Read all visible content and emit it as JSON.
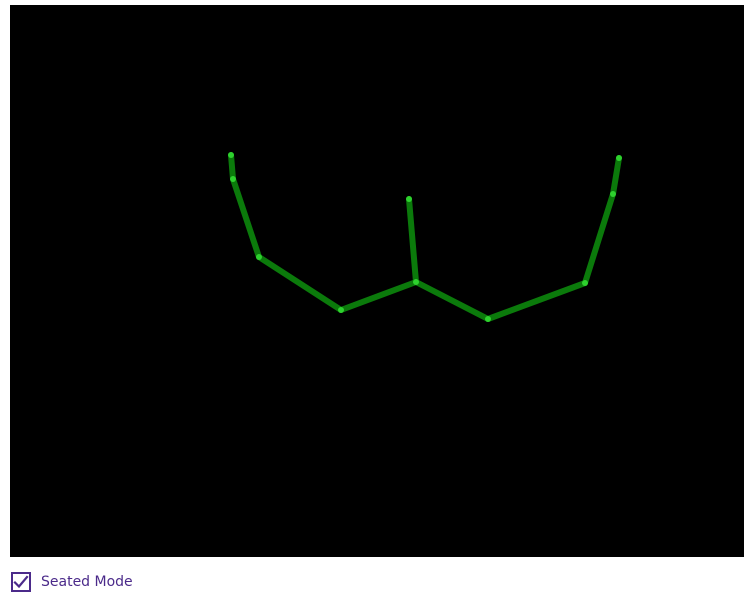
{
  "colors": {
    "canvas_background": "#000000",
    "bone": "#0b7a0b",
    "joint": "#2ed12e",
    "accent": "#4b2a8a"
  },
  "seated_mode": {
    "label": "Seated Mode",
    "checked": true
  }
}
